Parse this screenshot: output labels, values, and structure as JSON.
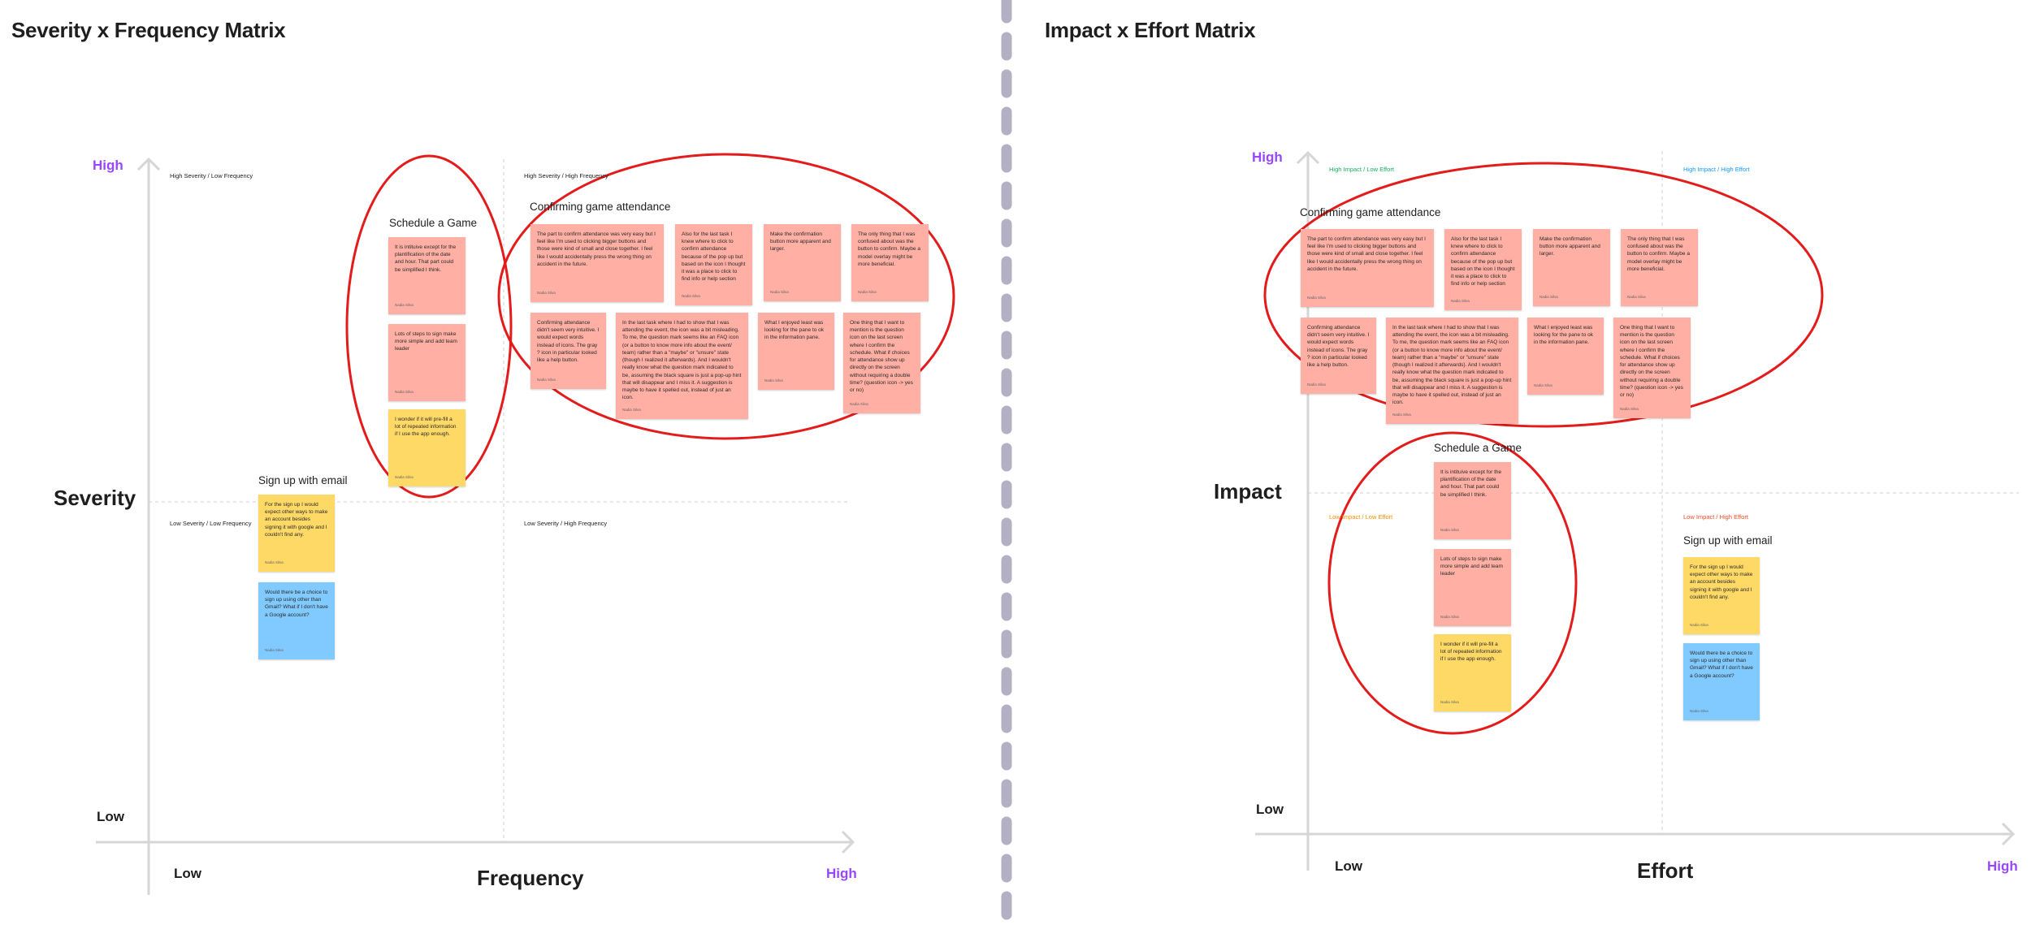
{
  "boards": {
    "left": {
      "title": "Severity x Frequency Matrix",
      "y_axis_title": "Severity",
      "x_axis_title": "Frequency",
      "y_high": "High",
      "y_low": "Low",
      "x_low": "Low",
      "x_high": "High",
      "quadrants": {
        "top_left": "High Severity / Low Frequency",
        "top_right": "High Severity / High Frequency",
        "bottom_left": "Low Severity / Low Frequency",
        "bottom_right": "Low Severity / High Frequency"
      },
      "groups": {
        "schedule": "Schedule a Game",
        "confirm": "Confirming game attendance",
        "signup": "Sign up with email"
      }
    },
    "right": {
      "title": "Impact x Effort Matrix",
      "y_axis_title": "Impact",
      "x_axis_title": "Effort",
      "y_high": "High",
      "y_low": "Low",
      "x_low": "Low",
      "x_high": "High",
      "quadrants": {
        "top_left": "High Impact / Low Effort",
        "top_right": "High Impact / High Effort",
        "bottom_left": "Low Impact / Low Effort",
        "bottom_right": "Low Impact / High Effort"
      },
      "groups": {
        "schedule": "Schedule a Game",
        "confirm": "Confirming game attendance",
        "signup": "Sign up with email"
      }
    }
  },
  "stickies": {
    "author": "Nadia Silva",
    "schedule_1": "It is intituive except for the plantification of the date and hour. That part could be simplified I think.",
    "schedule_2": "Lots of steps to sign make more simple and add team leader",
    "schedule_3": "I wonder if it will pre-fill a lot of repeated information if I use the app enough.",
    "confirm_1": "The part to confirm attendance was very easy but I feel like I'm used to clicking bigger buttons and those were kind of small and close together. I feel like I would accidentally press the wrong thing on accident in the future.",
    "confirm_2": "Also for the last task I knew where to click to confirm attendance because of the pop up but based on the icon I thought it was a place to click to find info or help section",
    "confirm_3": "Make the confirmation button more apparent and larger.",
    "confirm_4": "The only thing that I was confused about was the button to confirm. Maybe a model overlay might be more beneficial.",
    "confirm_5": "Confirming attendance didn't seem very intuitive. I would expect words instead of icons. The gray ? icon in particular looked like a help button.",
    "confirm_6": "In the last task where I had to show that I was attending the event, the icon was a bit misleading. To me, the question mark seems like an FAQ icon (or a button to know more info about the event/ team) rather than a \"maybe\" or \"unsure\" state (though I realized it afterwards). And I wouldn't really know what the question mark indicated to be, assuming the black square is just a pop-up hint that will disappear and I miss it. A suggestion is maybe to have it spelled out, instead of just an icon.",
    "confirm_7": "What I enjoyed least was looking for the pane to ok in the information pane.",
    "confirm_8": "One thing that I want to mention is the question icon on the last screen where I confirm the schedule. What if choices for attendance show up directly on the screen without requiring a double time? (question icon -> yes or no)",
    "signup_1": "For the sign up I would expect other ways to make an account besides signing it with google and I couldn't find any.",
    "signup_2": "Would there be a choice to sign up using other than Gmail? What if I don't have a Google account?"
  },
  "colors": {
    "red_sticky": "#ffafa3",
    "yellow_sticky": "#ffd966",
    "blue_sticky": "#80caff",
    "highlight_purple": "#9747ff",
    "cluster_ring": "#e31b1b",
    "divider": "#b3b0c4",
    "quad_green": "#14ae5c",
    "quad_blue": "#0d99ff",
    "quad_orange": "#ff8a00",
    "quad_red": "#f24822"
  }
}
